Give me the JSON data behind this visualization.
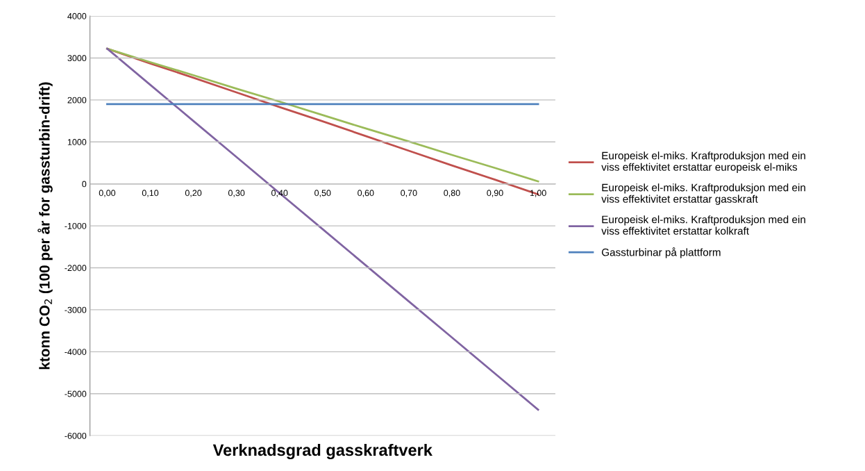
{
  "chart_data": {
    "type": "line",
    "xlabel": "Verknadsgrad gasskraftverk",
    "ylabel": "ktonn CO$_{2}$ (100 per år for gassturbin-drift)",
    "categories": [
      "0,00",
      "0,10",
      "0,20",
      "0,30",
      "0,40",
      "0,50",
      "0,60",
      "0,70",
      "0,80",
      "0,90",
      "1,00"
    ],
    "series": [
      {
        "name": "Europeisk el-miks. Kraftproduksjon med ein\nviss effektivitet erstattar europeisk el-miks",
        "color": "#c0504d",
        "values": [
          3220,
          2870,
          2530,
          2180,
          1830,
          1490,
          1140,
          790,
          440,
          100,
          -250
        ]
      },
      {
        "name": "Europeisk el-miks. Kraftproduksjon med ein\nviss effektivitet erstattar gasskraft",
        "color": "#9bbb59",
        "values": [
          3220,
          2900,
          2590,
          2270,
          1960,
          1640,
          1320,
          1010,
          690,
          380,
          60
        ]
      },
      {
        "name": "Europeisk el-miks. Kraftproduksjon med ein\nviss effektivitet erstattar kolkraft",
        "color": "#8064a2",
        "values": [
          3220,
          2360,
          1500,
          640,
          -220,
          -1080,
          -1940,
          -2800,
          -3660,
          -4520,
          -5380
        ]
      },
      {
        "name": "Gassturbinar på plattform",
        "color": "#4f81bd",
        "values": [
          1900,
          1900,
          1900,
          1900,
          1900,
          1900,
          1900,
          1900,
          1900,
          1900,
          1900
        ]
      }
    ],
    "ylim": [
      -6000,
      4000
    ],
    "yticks": [
      -6000,
      -5000,
      -4000,
      -3000,
      -2000,
      -1000,
      0,
      1000,
      2000,
      3000,
      4000
    ],
    "grid": "y",
    "legend": "right",
    "marker": "none",
    "line_style": "solid"
  }
}
